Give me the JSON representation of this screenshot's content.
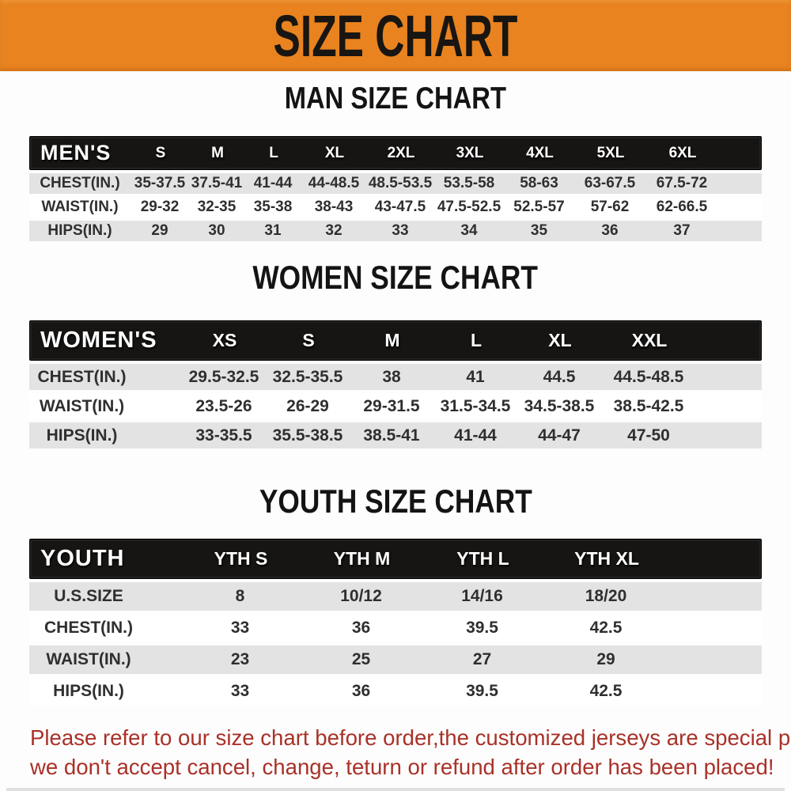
{
  "banner": {
    "title": "SIZE CHART"
  },
  "sections": [
    {
      "id": "men",
      "heading": "MAN SIZE CHART",
      "table": {
        "label": "MEN'S",
        "columns": [
          "S",
          "M",
          "L",
          "XL",
          "2XL",
          "3XL",
          "4XL",
          "5XL",
          "6XL"
        ],
        "rows": [
          {
            "label": "CHEST(IN.)",
            "values": [
              "35-37.5",
              "37.5-41",
              "41-44",
              "44-48.5",
              "48.5-53.5",
              "53.5-58",
              "58-63",
              "63-67.5",
              "67.5-72"
            ]
          },
          {
            "label": "WAIST(IN.)",
            "values": [
              "29-32",
              "32-35",
              "35-38",
              "38-43",
              "43-47.5",
              "47.5-52.5",
              "52.5-57",
              "57-62",
              "62-66.5"
            ]
          },
          {
            "label": "HIPS(IN.)",
            "values": [
              "29",
              "30",
              "31",
              "32",
              "33",
              "34",
              "35",
              "36",
              "37"
            ]
          }
        ]
      }
    },
    {
      "id": "women",
      "heading": "WOMEN SIZE CHART",
      "table": {
        "label": "WOMEN'S",
        "columns": [
          "XS",
          "S",
          "M",
          "L",
          "XL",
          "XXL"
        ],
        "rows": [
          {
            "label": "CHEST(IN.)",
            "values": [
              "29.5-32.5",
              "32.5-35.5",
              "38",
              "41",
              "44.5",
              "44.5-48.5"
            ]
          },
          {
            "label": "WAIST(IN.)",
            "values": [
              "23.5-26",
              "26-29",
              "29-31.5",
              "31.5-34.5",
              "34.5-38.5",
              "38.5-42.5"
            ]
          },
          {
            "label": "HIPS(IN.)",
            "values": [
              "33-35.5",
              "35.5-38.5",
              "38.5-41",
              "41-44",
              "44-47",
              "47-50"
            ]
          }
        ]
      }
    },
    {
      "id": "youth",
      "heading": "YOUTH SIZE CHART",
      "table": {
        "label": "YOUTH",
        "columns": [
          "YTH S",
          "YTH M",
          "YTH L",
          "YTH XL"
        ],
        "rows": [
          {
            "label": "U.S.SIZE",
            "values": [
              "8",
              "10/12",
              "14/16",
              "18/20"
            ]
          },
          {
            "label": "CHEST(IN.)",
            "values": [
              "33",
              "36",
              "39.5",
              "42.5"
            ]
          },
          {
            "label": "WAIST(IN.)",
            "values": [
              "23",
              "25",
              "27",
              "29"
            ]
          },
          {
            "label": "HIPS(IN.)",
            "values": [
              "33",
              "36",
              "39.5",
              "42.5"
            ]
          }
        ]
      }
    }
  ],
  "footer": {
    "line1": "Please refer to our size chart before order,the customized jerseys are special products,",
    "line2": "we don't accept cancel, change, teturn or refund after order has been placed!"
  },
  "colors": {
    "page-bg": "#fdfdfd",
    "banner-bg": "#e8831f",
    "banner-text": "#181512",
    "header-bar-bg": "#171513",
    "header-bar-text": "#ffffff",
    "row-shaded-bg": "#e3e3e4",
    "row-white-bg": "#ffffff",
    "data-text": "#2f2f2f",
    "footer-text": "#a93128"
  }
}
